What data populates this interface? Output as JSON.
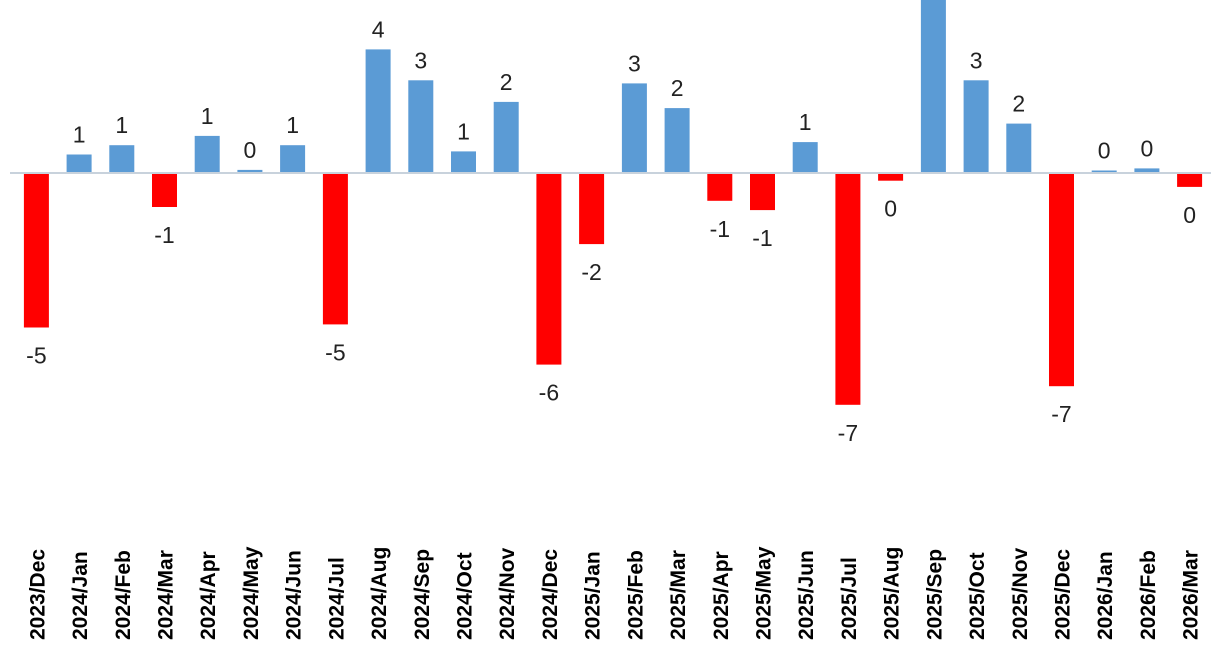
{
  "chart_data": {
    "type": "bar",
    "categories": [
      "2023/Dec",
      "2024/Jan",
      "2024/Feb",
      "2024/Mar",
      "2024/Apr",
      "2024/May",
      "2024/Jun",
      "2024/Jul",
      "2024/Aug",
      "2024/Sep",
      "2024/Oct",
      "2024/Nov",
      "2024/Dec",
      "2025/Jan",
      "2025/Feb",
      "2025/Mar",
      "2025/Apr",
      "2025/May",
      "2025/Jun",
      "2025/Jul",
      "2025/Aug",
      "2025/Sep",
      "2025/Oct",
      "2025/Nov",
      "2025/Dec",
      "2026/Jan",
      "2026/Feb",
      "2026/Mar"
    ],
    "values": [
      -5.0,
      0.6,
      0.9,
      -1.1,
      1.2,
      0.1,
      0.9,
      -4.9,
      4.0,
      3.0,
      0.7,
      2.3,
      -6.2,
      -2.3,
      2.9,
      2.1,
      -0.9,
      -1.2,
      1.0,
      -7.5,
      -0.25,
      6.0,
      3.0,
      1.6,
      -6.9,
      0.08,
      0.15,
      -0.45
    ],
    "data_labels": [
      "-5",
      "1",
      "1",
      "-1",
      "1",
      "0",
      "1",
      "-5",
      "4",
      "3",
      "1",
      "2",
      "-6",
      "-2",
      "3",
      "2",
      "-1",
      "-1",
      "1",
      "-7",
      "0",
      "",
      "3",
      "2",
      "-7",
      "0",
      "0",
      "0"
    ],
    "colors": {
      "positive": "#5b9bd5",
      "negative": "#ff0000",
      "axis": "#c8d2dc"
    },
    "ylim": [
      -8.5,
      6.0
    ],
    "grid": false,
    "legend": "none",
    "title": "",
    "xlabel": "",
    "ylabel": ""
  }
}
